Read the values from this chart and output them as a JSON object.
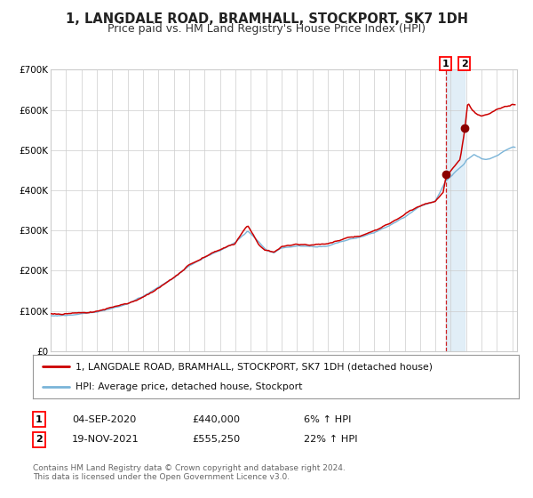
{
  "title": "1, LANGDALE ROAD, BRAMHALL, STOCKPORT, SK7 1DH",
  "subtitle": "Price paid vs. HM Land Registry's House Price Index (HPI)",
  "legend_line1": "1, LANGDALE ROAD, BRAMHALL, STOCKPORT, SK7 1DH (detached house)",
  "legend_line2": "HPI: Average price, detached house, Stockport",
  "annotation1_date": "04-SEP-2020",
  "annotation1_price": "£440,000",
  "annotation1_hpi": "6% ↑ HPI",
  "annotation2_date": "19-NOV-2021",
  "annotation2_price": "£555,250",
  "annotation2_hpi": "22% ↑ HPI",
  "footer": "Contains HM Land Registry data © Crown copyright and database right 2024.\nThis data is licensed under the Open Government Licence v3.0.",
  "sale1_year": 2020.67,
  "sale1_value": 440000,
  "sale2_year": 2021.88,
  "sale2_value": 555250,
  "hpi_color": "#7ab4d8",
  "price_color": "#cc0000",
  "dot_color": "#8b0000",
  "shade_color": "#daeaf5",
  "dashed_line_color": "#cc0000",
  "background_color": "#ffffff",
  "ylim": [
    0,
    700000
  ],
  "yticks": [
    0,
    100000,
    200000,
    300000,
    400000,
    500000,
    600000,
    700000
  ],
  "ytick_labels": [
    "£0",
    "£100K",
    "£200K",
    "£300K",
    "£400K",
    "£500K",
    "£600K",
    "£700K"
  ],
  "grid_color": "#cccccc",
  "title_fontsize": 10.5,
  "subtitle_fontsize": 9,
  "axis_fontsize": 7.5,
  "xmin": 1995,
  "xmax": 2025.3
}
